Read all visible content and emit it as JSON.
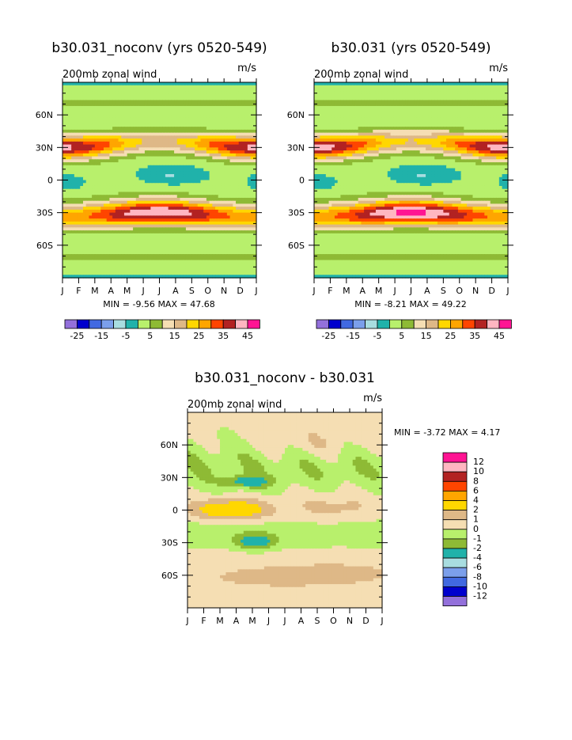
{
  "chart_data": [
    {
      "type": "heatmap",
      "title": "b30.031_noconv (yrs 0520-549)",
      "subtitle": "200mb zonal wind",
      "units": "m/s",
      "x_ticks": [
        "J",
        "F",
        "M",
        "A",
        "M",
        "J",
        "J",
        "A",
        "S",
        "O",
        "N",
        "D",
        "J"
      ],
      "y_ticks": [
        "60N",
        "30N",
        "0",
        "30S",
        "60S"
      ],
      "y_range": [
        -90,
        90
      ],
      "min_label": "MIN =",
      "min_value": "-9.56",
      "max_label": "MAX =",
      "max_value": "47.68",
      "levels": [
        -25,
        -20,
        -15,
        -10,
        -5,
        0,
        5,
        10,
        15,
        20,
        25,
        30,
        35,
        40,
        45
      ],
      "colorbar_labels": [
        "-25",
        "-15",
        "-5",
        "5",
        "15",
        "25",
        "35",
        "45"
      ],
      "colors": [
        "#9370DB",
        "#0000CD",
        "#4169E1",
        "#7B9FEB",
        "#A8DDE0",
        "#20B2AA",
        "#B8F06C",
        "#8EBA35",
        "#F5DEB3",
        "#DEB887",
        "#FFD700",
        "#FFA500",
        "#FF4500",
        "#B22222",
        "#FFB6C1",
        "#FF1493"
      ]
    },
    {
      "type": "heatmap",
      "title": "b30.031 (yrs 0520-549)",
      "subtitle": "200mb zonal wind",
      "units": "m/s",
      "x_ticks": [
        "J",
        "F",
        "M",
        "A",
        "M",
        "J",
        "J",
        "A",
        "S",
        "O",
        "N",
        "D",
        "J"
      ],
      "y_ticks": [
        "60N",
        "30N",
        "0",
        "30S",
        "60S"
      ],
      "y_range": [
        -90,
        90
      ],
      "min_label": "MIN =",
      "min_value": "-8.21",
      "max_label": "MAX =",
      "max_value": "49.22",
      "levels": [
        -25,
        -20,
        -15,
        -10,
        -5,
        0,
        5,
        10,
        15,
        20,
        25,
        30,
        35,
        40,
        45
      ],
      "colorbar_labels": [
        "-25",
        "-15",
        "-5",
        "5",
        "15",
        "25",
        "35",
        "45"
      ]
    },
    {
      "type": "heatmap",
      "title": "b30.031_noconv - b30.031",
      "subtitle": "200mb zonal wind",
      "units": "m/s",
      "x_ticks": [
        "J",
        "F",
        "M",
        "A",
        "M",
        "J",
        "J",
        "A",
        "S",
        "O",
        "N",
        "D",
        "J"
      ],
      "y_ticks": [
        "60N",
        "30N",
        "0",
        "30S",
        "60S"
      ],
      "y_range": [
        -90,
        90
      ],
      "min_label": "MIN =",
      "min_value": "-3.72",
      "max_label": "MAX =",
      "max_value": "4.17",
      "levels": [
        -12,
        -10,
        -8,
        -6,
        -4,
        -2,
        -1,
        0,
        1,
        2,
        4,
        6,
        8,
        10,
        12
      ],
      "colorbar_labels": [
        "12",
        "10",
        "8",
        "6",
        "4",
        "2",
        "1",
        "0",
        "-1",
        "-2",
        "-4",
        "-6",
        "-8",
        "-10",
        "-12"
      ],
      "colors": [
        "#9370DB",
        "#0000CD",
        "#4169E1",
        "#7B9FEB",
        "#A8DDE0",
        "#20B2AA",
        "#8EBA35",
        "#B8F06C",
        "#F5DEB3",
        "#DEB887",
        "#FFD700",
        "#FFA500",
        "#FF4500",
        "#B22222",
        "#FFB6C1",
        "#FF1493"
      ]
    }
  ]
}
